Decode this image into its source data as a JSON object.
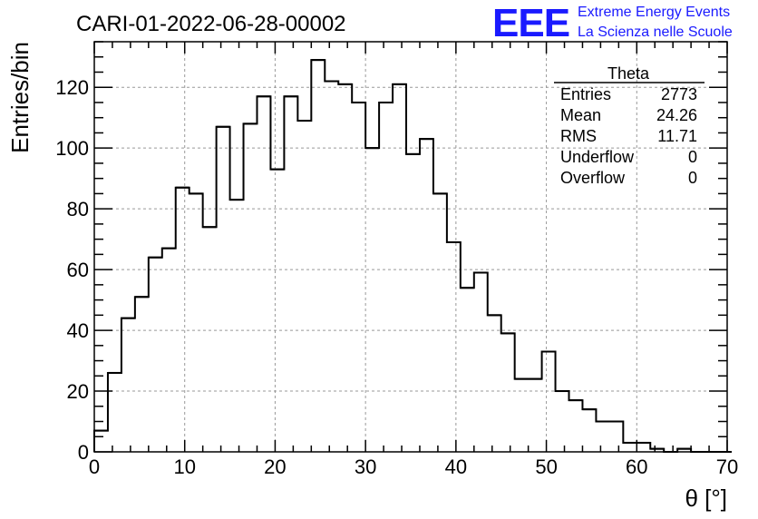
{
  "title": "CARI-01-2022-06-28-00002",
  "logo": {
    "mark": "EEE",
    "line1": "Extreme Energy Events",
    "line2": "La Scienza nelle Scuole",
    "color": "#1a1aff"
  },
  "stats": {
    "name": "Theta",
    "rows": [
      {
        "label": "Entries",
        "value": "2773"
      },
      {
        "label": "Mean",
        "value": "24.26"
      },
      {
        "label": "RMS",
        "value": "11.71"
      },
      {
        "label": "Underflow",
        "value": "0"
      },
      {
        "label": "Overflow",
        "value": "0"
      }
    ]
  },
  "chart_data": {
    "type": "bar",
    "style": "step-histogram",
    "xlabel": "θ [°]",
    "ylabel": "Entries/bin",
    "xlim": [
      0,
      70
    ],
    "ylim": [
      0,
      135
    ],
    "grid": true,
    "xticks": [
      0,
      10,
      20,
      30,
      40,
      50,
      60,
      70
    ],
    "yticks": [
      0,
      20,
      40,
      60,
      80,
      100,
      120
    ],
    "bin_width": 1.5,
    "bin_edges_start": 0,
    "values": [
      7,
      26,
      44,
      51,
      64,
      67,
      87,
      85,
      74,
      107,
      83,
      108,
      117,
      93,
      117,
      109,
      129,
      122,
      121,
      115,
      100,
      115,
      121,
      98,
      103,
      85,
      69,
      54,
      59,
      45,
      39,
      24,
      24,
      33,
      20,
      17,
      14,
      10,
      10,
      3,
      3,
      1,
      0,
      1,
      0,
      0,
      0
    ],
    "line_color": "#000000",
    "grid_color": "#999999"
  }
}
